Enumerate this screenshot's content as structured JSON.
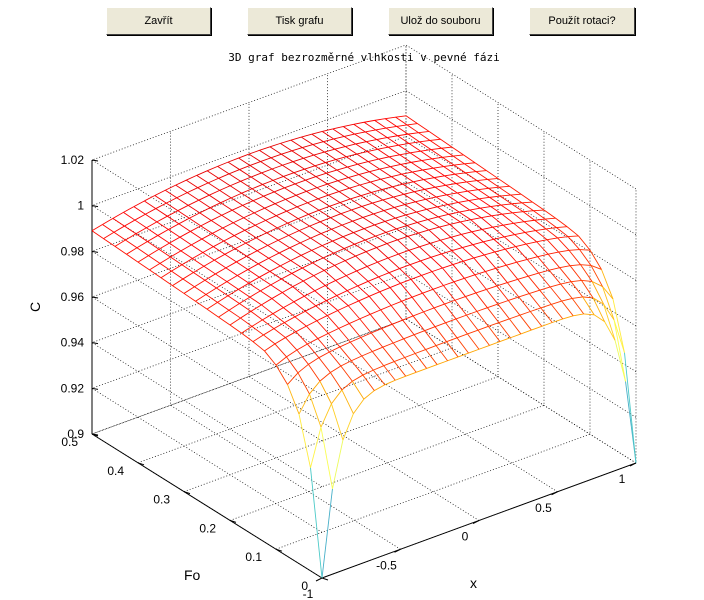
{
  "window": {
    "buttons": {
      "close": "Zavřít",
      "print": "Tisk grafu",
      "save": "Ulož do souboru",
      "rotate": "Použít rotaci?"
    }
  },
  "chart_data": {
    "type": "surface-mesh",
    "title": "3D graf bezrozměrné vlhkosti v pevné fázi",
    "xlabel": "x",
    "ylabel": "Fo",
    "zlabel": "C",
    "xlim": [
      -1,
      1
    ],
    "ylim": [
      0,
      0.5
    ],
    "zlim": [
      0.9,
      1.02
    ],
    "x_ticks": [
      "-1",
      "-0.5",
      "0",
      "0.5",
      "1"
    ],
    "y_ticks": [
      "0",
      "0.1",
      "0.2",
      "0.3",
      "0.4",
      "0.5"
    ],
    "z_ticks": [
      "0.9",
      "0.92",
      "0.94",
      "0.96",
      "0.98",
      "1",
      "1.02"
    ],
    "grid": true,
    "colormap": "hot",
    "surface": {
      "x_range": [
        -1,
        1
      ],
      "fo_range": [
        0,
        0.5
      ],
      "c_at_fo0_edges": 0.9,
      "c_at_fo0_centre": 0.975,
      "c_plateau": 0.983,
      "c_max": 1.0
    }
  }
}
